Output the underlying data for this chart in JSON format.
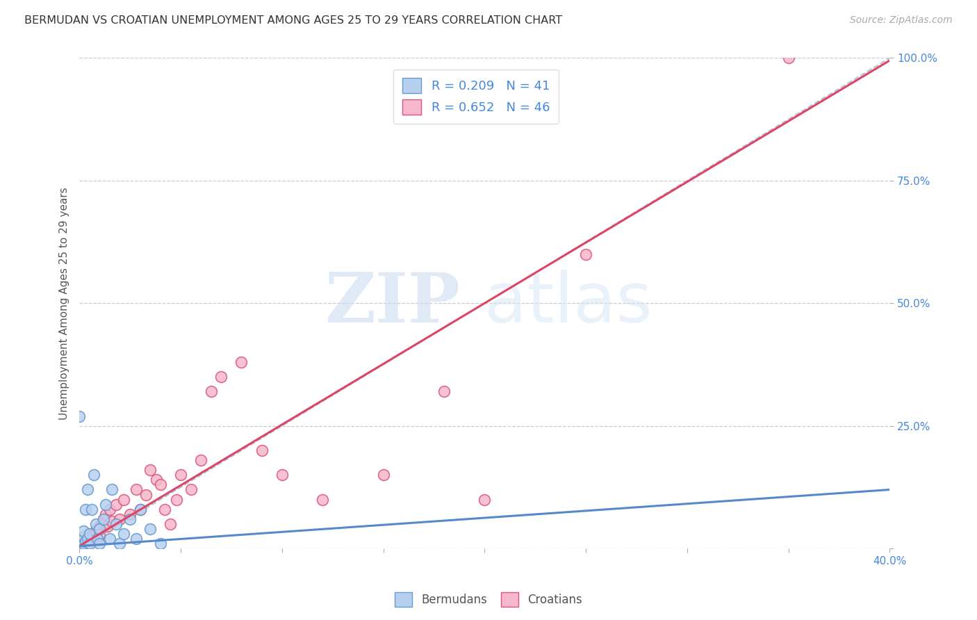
{
  "title": "BERMUDAN VS CROATIAN UNEMPLOYMENT AMONG AGES 25 TO 29 YEARS CORRELATION CHART",
  "source_text": "Source: ZipAtlas.com",
  "ylabel": "Unemployment Among Ages 25 to 29 years",
  "xlim": [
    0.0,
    0.4
  ],
  "ylim": [
    0.0,
    1.0
  ],
  "xtick_positions": [
    0.0,
    0.05,
    0.1,
    0.15,
    0.2,
    0.25,
    0.3,
    0.35,
    0.4
  ],
  "xticklabels": [
    "0.0%",
    "",
    "",
    "",
    "",
    "",
    "",
    "",
    "40.0%"
  ],
  "ytick_positions": [
    0.0,
    0.25,
    0.5,
    0.75,
    1.0
  ],
  "yticklabels": [
    "",
    "25.0%",
    "50.0%",
    "75.0%",
    "100.0%"
  ],
  "bermudan_color": "#b8d0f0",
  "croatian_color": "#f5b8cc",
  "bermudan_edge": "#6699cc",
  "croatian_edge": "#dd5577",
  "bermudan_R": 0.209,
  "bermudan_N": 41,
  "croatian_R": 0.652,
  "croatian_N": 46,
  "legend_text_color": "#4488dd",
  "watermark_zip": "ZIP",
  "watermark_atlas": "atlas",
  "background_color": "#ffffff",
  "grid_color": "#cccccc",
  "bermudan_line_color": "#5588cc",
  "croatian_line_color": "#dd4466",
  "ref_line_color": "#aabbcc",
  "berm_x": [
    0.0,
    0.0,
    0.0,
    0.0,
    0.0,
    0.0,
    0.0,
    0.0,
    0.0,
    0.0,
    0.0,
    0.0,
    0.001,
    0.001,
    0.002,
    0.002,
    0.002,
    0.003,
    0.003,
    0.004,
    0.004,
    0.005,
    0.005,
    0.006,
    0.007,
    0.008,
    0.009,
    0.01,
    0.01,
    0.012,
    0.013,
    0.015,
    0.016,
    0.018,
    0.02,
    0.022,
    0.025,
    0.028,
    0.03,
    0.035,
    0.04
  ],
  "berm_y": [
    0.0,
    0.0,
    0.0,
    0.002,
    0.003,
    0.005,
    0.008,
    0.01,
    0.012,
    0.015,
    0.27,
    0.02,
    0.005,
    0.018,
    0.01,
    0.025,
    0.035,
    0.015,
    0.08,
    0.02,
    0.12,
    0.01,
    0.03,
    0.08,
    0.15,
    0.05,
    0.02,
    0.01,
    0.04,
    0.06,
    0.09,
    0.02,
    0.12,
    0.05,
    0.01,
    0.03,
    0.06,
    0.02,
    0.08,
    0.04,
    0.01
  ],
  "croat_x": [
    0.0,
    0.0,
    0.0,
    0.001,
    0.002,
    0.003,
    0.004,
    0.005,
    0.006,
    0.007,
    0.008,
    0.009,
    0.01,
    0.011,
    0.012,
    0.013,
    0.014,
    0.015,
    0.016,
    0.018,
    0.02,
    0.022,
    0.025,
    0.028,
    0.03,
    0.033,
    0.035,
    0.038,
    0.04,
    0.042,
    0.045,
    0.048,
    0.05,
    0.055,
    0.06,
    0.065,
    0.07,
    0.08,
    0.09,
    0.1,
    0.12,
    0.15,
    0.18,
    0.2,
    0.25,
    0.35
  ],
  "croat_y": [
    0.0,
    0.005,
    0.01,
    0.008,
    0.015,
    0.02,
    0.012,
    0.03,
    0.025,
    0.018,
    0.035,
    0.04,
    0.028,
    0.05,
    0.06,
    0.07,
    0.045,
    0.08,
    0.055,
    0.09,
    0.06,
    0.1,
    0.07,
    0.12,
    0.08,
    0.11,
    0.16,
    0.14,
    0.13,
    0.08,
    0.05,
    0.1,
    0.15,
    0.12,
    0.18,
    0.32,
    0.35,
    0.38,
    0.2,
    0.15,
    0.1,
    0.15,
    0.32,
    0.1,
    0.6,
    1.0
  ]
}
